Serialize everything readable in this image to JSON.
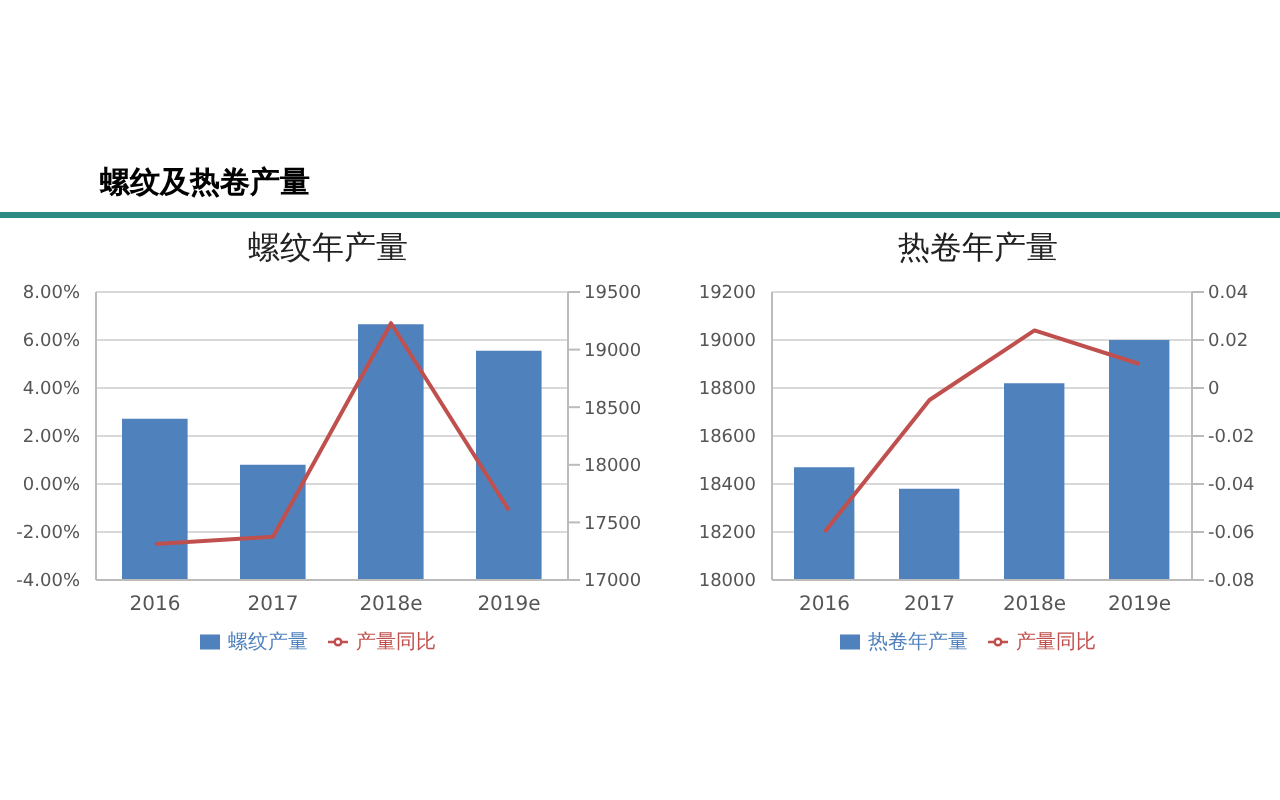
{
  "chart_data": [
    {
      "type": "bar",
      "title": "螺纹年产量",
      "annotations": [
        "螺纹及热卷产量"
      ],
      "categories": [
        "2016",
        "2017",
        "2018e",
        "2019e"
      ],
      "series": [
        {
          "name": "螺纹产量",
          "axis": "y2",
          "color": "#4f81bd",
          "values": [
            18400,
            18000,
            19220,
            18990
          ]
        },
        {
          "name": "产量同比",
          "type": "line",
          "color": "#c0504d",
          "values": [
            -2.5,
            -2.2,
            6.7,
            -1.1
          ]
        }
      ],
      "ylim": [
        -4,
        8
      ],
      "yticks": [
        {
          "value": -4,
          "label": "-4.00%"
        },
        {
          "value": -2,
          "label": "-2.00%"
        },
        {
          "value": 0,
          "label": "0.00%"
        },
        {
          "value": 2,
          "label": "2.00%"
        },
        {
          "value": 4,
          "label": "4.00%"
        },
        {
          "value": 6,
          "label": "6.00%"
        },
        {
          "value": 8,
          "label": "8.00%"
        }
      ],
      "y2lim": [
        17000,
        19500
      ],
      "y2ticks": [
        17000,
        17500,
        18000,
        18500,
        19000,
        19500
      ],
      "grid": "y",
      "legend": "bottom",
      "marker": "none"
    },
    {
      "type": "bar",
      "title": "热卷年产量",
      "categories": [
        "2016",
        "2017",
        "2018e",
        "2019e"
      ],
      "series": [
        {
          "name": "热卷年产量",
          "color": "#4f81bd",
          "values": [
            18470,
            18380,
            18820,
            19000
          ]
        },
        {
          "name": "产量同比",
          "type": "line",
          "axis": "y2",
          "color": "#c0504d",
          "values": [
            -0.06,
            -0.005,
            0.024,
            0.01
          ]
        }
      ],
      "ylim": [
        18000,
        19200
      ],
      "yticks": [
        18000,
        18200,
        18400,
        18600,
        18800,
        19000,
        19200
      ],
      "y2lim": [
        -0.08,
        0.04
      ],
      "y2ticks": [
        -0.08,
        -0.06,
        -0.04,
        -0.02,
        0,
        0.02,
        0.04
      ],
      "grid": "y",
      "legend": "bottom",
      "marker": "none"
    }
  ]
}
